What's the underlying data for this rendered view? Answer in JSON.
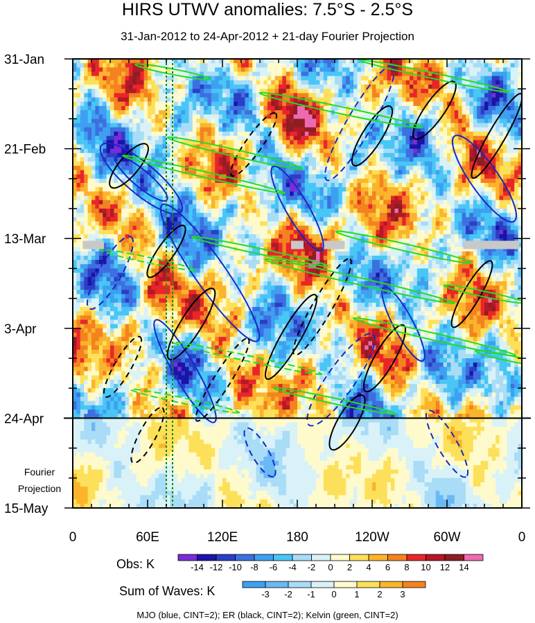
{
  "chart_data": {
    "type": "heatmap",
    "title": "HIRS UTWV anomalies: 7.5°S - 2.5°S",
    "subtitle": "31-Jan-2012 to 24-Apr-2012 + 21-day Fourier Projection",
    "x_ticks": [
      {
        "lon": 0,
        "label": "0"
      },
      {
        "lon": 60,
        "label": "60E"
      },
      {
        "lon": 120,
        "label": "120E"
      },
      {
        "lon": 180,
        "label": "180"
      },
      {
        "lon": 240,
        "label": "120W"
      },
      {
        "lon": 300,
        "label": "60W"
      },
      {
        "lon": 360,
        "label": "0"
      }
    ],
    "xlim": [
      0,
      360
    ],
    "y_ticks": [
      {
        "day": 0,
        "label": "31-Jan"
      },
      {
        "day": 21,
        "label": "21-Feb"
      },
      {
        "day": 42,
        "label": "13-Mar"
      },
      {
        "day": 63,
        "label": "3-Apr"
      },
      {
        "day": 84,
        "label": "24-Apr"
      },
      {
        "day": 105,
        "label": "15-May"
      }
    ],
    "ylim_days": [
      0,
      105
    ],
    "observed_end_day": 84,
    "forecast_label_line1": "Fourier",
    "forecast_label_line2": "Projection",
    "reference_longitudes": [
      75,
      80
    ],
    "obs_colorbar": {
      "label": "Obs: K",
      "levels": [
        "-14",
        "-12",
        "-10",
        "-8",
        "-6",
        "-4",
        "-2",
        "0",
        "2",
        "4",
        "6",
        "8",
        "10",
        "12",
        "14"
      ],
      "colors": [
        "#7b2cd8",
        "#1b14a8",
        "#2a3fc4",
        "#3e6fe0",
        "#3ea0f0",
        "#48c6f6",
        "#a9dcf6",
        "#d9f2f8",
        "#fffacc",
        "#fde05a",
        "#fbb42c",
        "#f48220",
        "#e8262a",
        "#b51826",
        "#8c1e24",
        "#ee6ab0"
      ]
    },
    "waves_colorbar": {
      "label": "Sum of Waves: K",
      "levels": [
        "-3",
        "-2",
        "-1",
        "0",
        "1",
        "2",
        "3"
      ],
      "colors": [
        "#3ea0f0",
        "#6ab8f4",
        "#a9dcf6",
        "#d9f2f8",
        "#fffacc",
        "#fde05a",
        "#fbb42c",
        "#f48220"
      ]
    },
    "footnote": "MJO (blue, CINT=2); ER (black, CINT=2); Kelvin (green, CINT=2)",
    "series": [
      {
        "name": "MJO",
        "color": "#1528c8",
        "cint": 2
      },
      {
        "name": "ER",
        "color": "#000000",
        "cint": 2
      },
      {
        "name": "Kelvin",
        "color": "#22dd22",
        "cint": 2
      }
    ]
  }
}
